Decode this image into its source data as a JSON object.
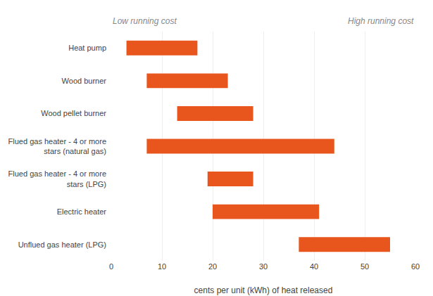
{
  "chart_data": {
    "type": "bar",
    "orientation": "horizontal",
    "categories": [
      "Heat pump",
      "Wood burner",
      "Wood pellet burner",
      "Flued gas heater - 4 or more\nstars (natural gas)",
      "Flued gas heater - 4 or more\nstars (LPG)",
      "Electric heater",
      "Unflued gas heater (LPG)"
    ],
    "values": [
      [
        3,
        17
      ],
      [
        7,
        23
      ],
      [
        13,
        28
      ],
      [
        7,
        44
      ],
      [
        19,
        28
      ],
      [
        20,
        41
      ],
      [
        37,
        55
      ]
    ],
    "color": "#E8561E",
    "xlabel": "cents per unit (kWh) of heat released",
    "xlim": [
      0,
      60
    ],
    "xticks": [
      0,
      10,
      20,
      30,
      40,
      50,
      60
    ],
    "grid": true,
    "annotations": [
      "Low running cost",
      "High running cost"
    ]
  }
}
